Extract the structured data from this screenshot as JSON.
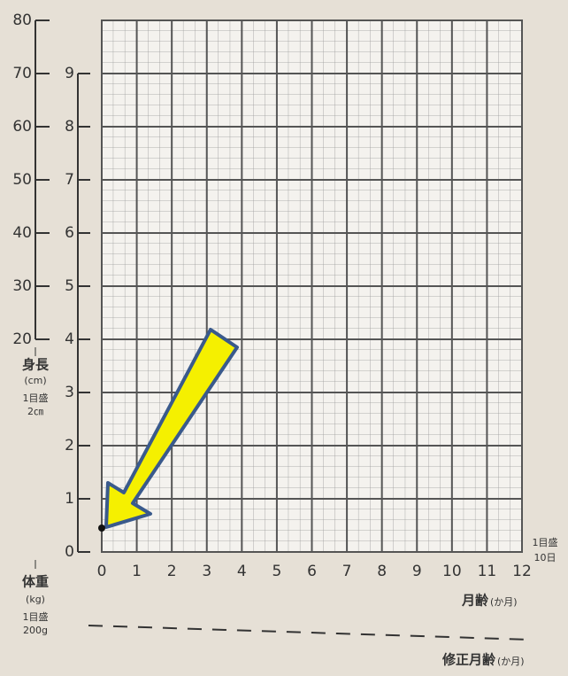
{
  "chart_data": {
    "type": "scatter",
    "x": [
      0
    ],
    "values": [
      0.45
    ],
    "color": "#111111",
    "xlim": [
      0,
      12
    ],
    "xticks": [
      0,
      1,
      2,
      3,
      4,
      5,
      6,
      7,
      8,
      9,
      10,
      11,
      12
    ],
    "ylim": [
      0,
      10
    ],
    "yticks": [
      0,
      1,
      2,
      3,
      4,
      5,
      6,
      7,
      8,
      9
    ],
    "y2lim": [
      -20,
      80
    ],
    "y2ticks": [
      20,
      30,
      40,
      50,
      60,
      70,
      80
    ],
    "grid": true,
    "y2_label": {
      "name": "身長",
      "unit": "(cm)",
      "scale_title": "1目盛",
      "scale": "2㎝"
    },
    "y_label": {
      "name": "体重",
      "unit": "(kg)",
      "scale_title": "1目盛",
      "scale": "200g"
    },
    "x_scale": {
      "scale_title": "1目盛",
      "scale": "10日"
    },
    "x_label": {
      "name": "月齢",
      "unit": "(か月)"
    },
    "x2_label": {
      "name": "修正月齢",
      "unit": "(か月)"
    }
  }
}
